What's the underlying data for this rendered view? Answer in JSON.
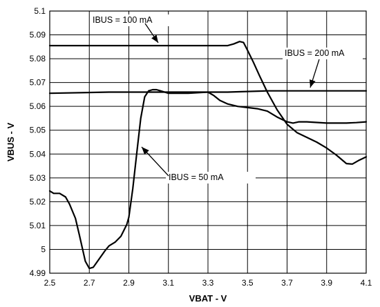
{
  "chart_data": {
    "type": "line",
    "xlabel": "VBAT - V",
    "ylabel": "VBUS - V",
    "xlim": [
      2.5,
      4.1
    ],
    "ylim": [
      4.99,
      5.1
    ],
    "grid": true,
    "x_ticks": [
      "2.5",
      "2.7",
      "2.9",
      "3.1",
      "3.3",
      "3.5",
      "3.7",
      "3.9",
      "4.1"
    ],
    "y_ticks": [
      "4.99",
      "5",
      "5.01",
      "5.02",
      "5.03",
      "5.04",
      "5.05",
      "5.06",
      "5.07",
      "5.08",
      "5.09",
      "5.1"
    ],
    "series": [
      {
        "name": "IBUS = 100 mA",
        "x": [
          2.5,
          3.2,
          3.4,
          3.43,
          3.46,
          3.48,
          3.5,
          3.53,
          3.56,
          3.6,
          3.65,
          3.7,
          3.75,
          3.8,
          3.85,
          3.9,
          3.95,
          4.0,
          4.03,
          4.06,
          4.1
        ],
        "y": [
          5.0855,
          5.0855,
          5.0855,
          5.0862,
          5.0872,
          5.0868,
          5.0835,
          5.0785,
          5.073,
          5.066,
          5.0585,
          5.0525,
          5.049,
          5.047,
          5.045,
          5.0425,
          5.0395,
          5.036,
          5.0358,
          5.0372,
          5.0388
        ]
      },
      {
        "name": "IBUS = 200 mA",
        "x": [
          2.5,
          2.8,
          3.0,
          3.2,
          3.4,
          3.6,
          3.8,
          4.1
        ],
        "y": [
          5.0655,
          5.066,
          5.066,
          5.066,
          5.066,
          5.0665,
          5.0665,
          5.0665
        ]
      },
      {
        "name": "IBUS = 50 mA",
        "x": [
          2.5,
          2.52,
          2.55,
          2.58,
          2.6,
          2.63,
          2.65,
          2.68,
          2.7,
          2.72,
          2.75,
          2.78,
          2.8,
          2.83,
          2.86,
          2.89,
          2.9,
          2.92,
          2.94,
          2.96,
          2.98,
          3.0,
          3.02,
          3.04,
          3.06,
          3.1,
          3.2,
          3.3,
          3.33,
          3.36,
          3.4,
          3.45,
          3.5,
          3.55,
          3.6,
          3.65,
          3.7,
          3.73,
          3.76,
          3.8,
          3.9,
          4.0,
          4.05,
          4.1
        ],
        "y": [
          5.0245,
          5.0235,
          5.0235,
          5.022,
          5.019,
          5.013,
          5.006,
          4.995,
          4.992,
          4.9925,
          4.996,
          4.9995,
          5.0015,
          5.003,
          5.0055,
          5.0105,
          5.0135,
          5.0255,
          5.0405,
          5.055,
          5.064,
          5.0665,
          5.067,
          5.067,
          5.0665,
          5.0655,
          5.0655,
          5.066,
          5.0645,
          5.0625,
          5.061,
          5.06,
          5.0595,
          5.059,
          5.058,
          5.0555,
          5.0535,
          5.053,
          5.0535,
          5.0535,
          5.053,
          5.053,
          5.0532,
          5.0535
        ]
      }
    ],
    "annotations": [
      {
        "text": "IBUS = 100 mA",
        "series": "IBUS = 100 mA"
      },
      {
        "text": "IBUS = 200 mA",
        "series": "IBUS = 200 mA"
      },
      {
        "text": "IBUS = 50 mA",
        "series": "IBUS = 50 mA"
      }
    ]
  }
}
